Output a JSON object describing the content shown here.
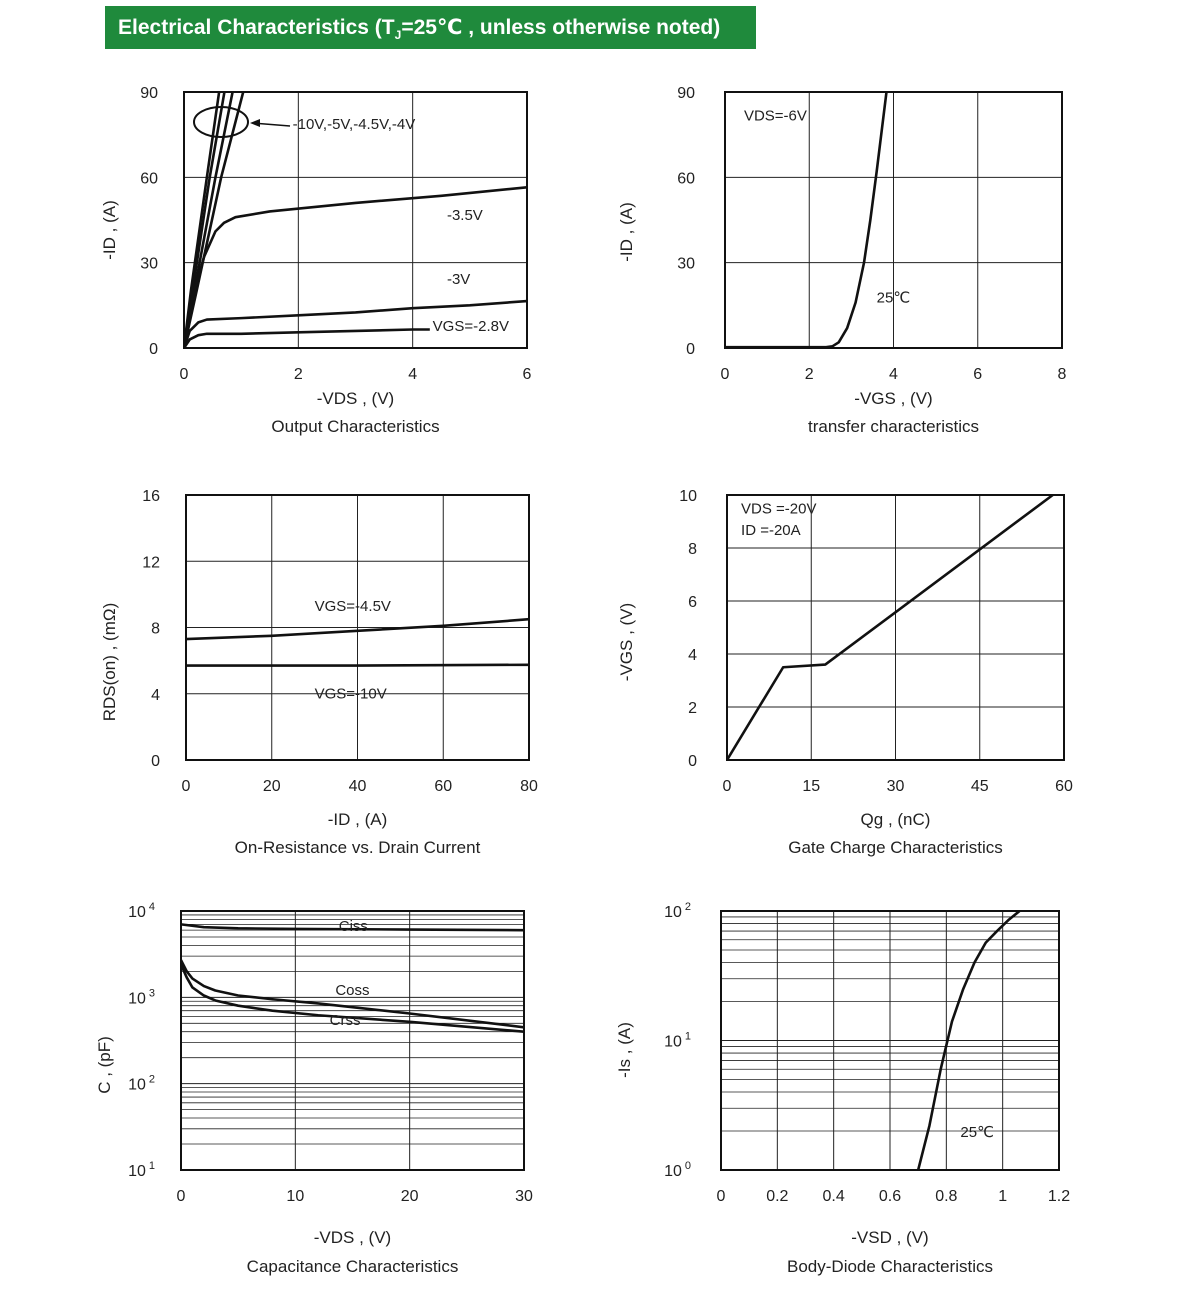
{
  "header": {
    "title_a": "Electrical Characteristics (T",
    "title_sub": "J",
    "title_b": "=25℃  , unless otherwise noted)",
    "bg_color": "#1f8a3c"
  },
  "chart_data": [
    {
      "id": "output",
      "type": "line",
      "title": "Output Characteristics",
      "xlabel": "-VDS  , (V)",
      "ylabel": "-ID  , (A)",
      "xlim": [
        0,
        6
      ],
      "ylim": [
        0,
        90
      ],
      "xticks": [
        0,
        2,
        4,
        6
      ],
      "yticks": [
        0,
        30,
        60,
        90
      ],
      "xtick_labels": [
        "0",
        "2",
        "4",
        "6"
      ],
      "ytick_labels": [
        "0",
        "30",
        "60",
        "90"
      ],
      "grid": true,
      "annotations": [
        {
          "text": "-10V,-5V,-4.5V,-4V",
          "x": 1.9,
          "y": 77
        },
        {
          "text": "-3.5V",
          "x": 4.6,
          "y": 45
        },
        {
          "text": "-3V",
          "x": 4.6,
          "y": 22.5
        },
        {
          "text": "VGS=-2.8V",
          "x": 4.35,
          "y": 6
        }
      ],
      "series": [
        {
          "x": [
            0,
            0.12,
            0.4,
            0.65
          ],
          "y": [
            0,
            20,
            60,
            95
          ]
        },
        {
          "x": [
            0,
            0.15,
            0.45,
            0.75
          ],
          "y": [
            0,
            20,
            60,
            95
          ]
        },
        {
          "x": [
            0,
            0.18,
            0.55,
            0.9
          ],
          "y": [
            0,
            20,
            60,
            95
          ]
        },
        {
          "x": [
            0,
            0.22,
            0.65,
            1.1
          ],
          "y": [
            0,
            20,
            60,
            95
          ]
        },
        {
          "x": [
            0,
            0.15,
            0.35,
            0.55,
            0.7,
            0.9,
            1.5,
            3,
            4.5,
            6
          ],
          "y": [
            0,
            18,
            32,
            41,
            44,
            46,
            48,
            51,
            53.5,
            56.5
          ]
        },
        {
          "x": [
            0,
            0.1,
            0.25,
            0.4,
            1,
            2,
            3,
            4,
            5,
            6
          ],
          "y": [
            0,
            6,
            9,
            10,
            10.5,
            11.5,
            12.5,
            14,
            15,
            16.5
          ]
        },
        {
          "x": [
            0,
            0.1,
            0.25,
            0.4,
            1,
            2,
            3,
            4,
            4.3
          ],
          "y": [
            0,
            3,
            4.5,
            5,
            5,
            5.5,
            6,
            6.5,
            6.5
          ]
        }
      ]
    },
    {
      "id": "transfer",
      "type": "line",
      "title": "transfer characteristics",
      "xlabel": "-VGS  , (V)",
      "ylabel": "-ID  , (A)",
      "xlim": [
        0,
        8
      ],
      "ylim": [
        0,
        90
      ],
      "xticks": [
        0,
        2,
        4,
        6,
        8
      ],
      "yticks": [
        0,
        30,
        60,
        90
      ],
      "xtick_labels": [
        "0",
        "2",
        "4",
        "6",
        "8"
      ],
      "ytick_labels": [
        "0",
        "30",
        "60",
        "90"
      ],
      "grid": true,
      "annotations": [
        {
          "text": "VDS=-6V",
          "x": 0.45,
          "y": 80
        },
        {
          "text": "25℃",
          "x": 3.6,
          "y": 16
        }
      ],
      "series": [
        {
          "name": "25℃",
          "x": [
            0,
            2.4,
            2.55,
            2.7,
            2.9,
            3.1,
            3.3,
            3.45,
            3.6,
            3.75,
            3.85
          ],
          "y": [
            0.3,
            0.3,
            0.6,
            2,
            7,
            16,
            30,
            45,
            62,
            80,
            92
          ]
        }
      ]
    },
    {
      "id": "rdson",
      "type": "line",
      "title": "On-Resistance vs. Drain Current",
      "xlabel": "-ID  , (A)",
      "ylabel": "RDS(on)  , (mΩ)",
      "xlim": [
        0,
        80
      ],
      "ylim": [
        0,
        16
      ],
      "xticks": [
        0,
        20,
        40,
        60,
        80
      ],
      "yticks": [
        0,
        4,
        8,
        12,
        16
      ],
      "xtick_labels": [
        "0",
        "20",
        "40",
        "60",
        "80"
      ],
      "ytick_labels": [
        "0",
        "4",
        "8",
        "12",
        "16"
      ],
      "grid": true,
      "annotations": [
        {
          "text": "VGS=-4.5V",
          "x": 30,
          "y": 9
        },
        {
          "text": "VGS=-10V",
          "x": 30,
          "y": 3.7
        }
      ],
      "series": [
        {
          "name": "VGS=-4.5V",
          "x": [
            0,
            20,
            40,
            60,
            80
          ],
          "y": [
            7.3,
            7.5,
            7.8,
            8.1,
            8.5
          ]
        },
        {
          "name": "VGS=-10V",
          "x": [
            0,
            40,
            80
          ],
          "y": [
            5.7,
            5.7,
            5.75
          ]
        }
      ]
    },
    {
      "id": "gate",
      "type": "line",
      "title": "Gate Charge Characteristics",
      "xlabel": "Qg , (nC)",
      "ylabel": "-VGS  , (V)",
      "xlim": [
        0,
        60
      ],
      "ylim": [
        0,
        10
      ],
      "xticks": [
        0,
        15,
        30,
        45,
        60
      ],
      "yticks": [
        0,
        2,
        4,
        6,
        8,
        10
      ],
      "xtick_labels": [
        "0",
        "15",
        "30",
        "45",
        "60"
      ],
      "ytick_labels": [
        "0",
        "2",
        "4",
        "6",
        "8",
        "10"
      ],
      "grid": true,
      "annotations": [
        {
          "text": "VDS =-20V",
          "x": 2.5,
          "y": 9.3
        },
        {
          "text": "ID  =-20A",
          "x": 2.5,
          "y": 8.5
        }
      ],
      "series": [
        {
          "x": [
            0,
            10,
            17.5,
            58
          ],
          "y": [
            0,
            3.5,
            3.6,
            10
          ]
        }
      ]
    },
    {
      "id": "capacitance",
      "type": "line",
      "title": "Capacitance Characteristics",
      "xlabel": "-VDS  ,  (V)",
      "ylabel": "C , (pF)",
      "xlim": [
        0,
        30
      ],
      "ylim": [
        10,
        10000
      ],
      "yscale": "log",
      "xticks": [
        0,
        10,
        20,
        30
      ],
      "yticks": [
        10,
        100,
        1000,
        10000
      ],
      "xtick_labels": [
        "0",
        "10",
        "20",
        "30"
      ],
      "ytick_base": [
        "10",
        "10",
        "10",
        "10"
      ],
      "ytick_exp": [
        "1",
        "2",
        "3",
        "4"
      ],
      "grid": true,
      "annotations": [
        {
          "text": "Ciss",
          "x": 13.8,
          "y": 5900
        },
        {
          "text": "Coss",
          "x": 13.5,
          "y": 1070
        },
        {
          "text": "Crss",
          "x": 13,
          "y": 480
        }
      ],
      "series": [
        {
          "name": "Ciss",
          "x": [
            0,
            2,
            5,
            10,
            20,
            30
          ],
          "y": [
            7000,
            6500,
            6300,
            6200,
            6100,
            6000
          ]
        },
        {
          "name": "Coss",
          "x": [
            0,
            0.5,
            1,
            2,
            3,
            5,
            8,
            12,
            20,
            30
          ],
          "y": [
            2700,
            2000,
            1650,
            1350,
            1200,
            1050,
            950,
            850,
            650,
            450
          ]
        },
        {
          "name": "Crss",
          "x": [
            0,
            0.5,
            1,
            2,
            3,
            5,
            8,
            12,
            20,
            30
          ],
          "y": [
            2400,
            1700,
            1300,
            1050,
            920,
            800,
            700,
            620,
            520,
            400
          ]
        }
      ]
    },
    {
      "id": "diode",
      "type": "line",
      "title": "Body-Diode Characteristics",
      "xlabel": "-VSD  , (V)",
      "ylabel": "-Is , (A)",
      "xlim": [
        0,
        1.2
      ],
      "ylim": [
        1,
        100
      ],
      "yscale": "log",
      "xticks": [
        0,
        0.2,
        0.4,
        0.6,
        0.8,
        1.0,
        1.2
      ],
      "yticks": [
        1,
        10,
        100
      ],
      "xtick_labels": [
        "0",
        "0.2",
        "0.4",
        "0.6",
        "0.8",
        "1",
        "1.2"
      ],
      "ytick_base": [
        "10",
        "10",
        "10"
      ],
      "ytick_exp": [
        "0",
        "1",
        "2"
      ],
      "grid": true,
      "annotations": [
        {
          "text": "25℃",
          "x": 0.85,
          "y": 1.8
        }
      ],
      "series": [
        {
          "name": "25℃",
          "x": [
            0.7,
            0.74,
            0.78,
            0.82,
            0.86,
            0.9,
            0.94,
            0.98,
            1.02,
            1.06
          ],
          "y": [
            1,
            2.2,
            6,
            14,
            25,
            40,
            57,
            70,
            85,
            100
          ]
        }
      ]
    }
  ]
}
